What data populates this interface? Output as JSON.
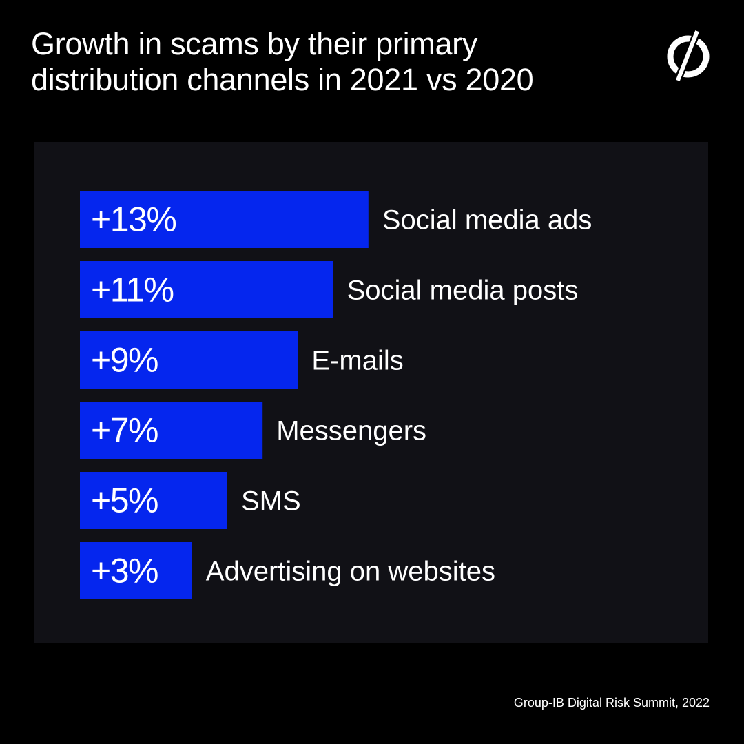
{
  "title": {
    "line1": "Growth in scams by their primary",
    "line2": "distribution channels in 2021 vs 2020"
  },
  "logo": {
    "icon": "group-ib-logo-icon"
  },
  "source": "Group-IB Digital Risk Summit, 2022",
  "colors": {
    "background": "#000000",
    "panel": "#111116",
    "bar": "#0526ee",
    "text": "#ffffff"
  },
  "chart_data": {
    "type": "bar",
    "orientation": "horizontal",
    "categories": [
      "Social media ads",
      "Social media posts",
      "E-mails",
      "Messengers",
      "SMS",
      "Advertising on websites"
    ],
    "values": [
      13,
      11,
      9,
      7,
      5,
      3
    ],
    "value_labels": [
      "+13%",
      "+11%",
      "+9%",
      "+7%",
      "+5%",
      "+3%"
    ],
    "unit": "%",
    "grid": false,
    "legend": "none"
  }
}
